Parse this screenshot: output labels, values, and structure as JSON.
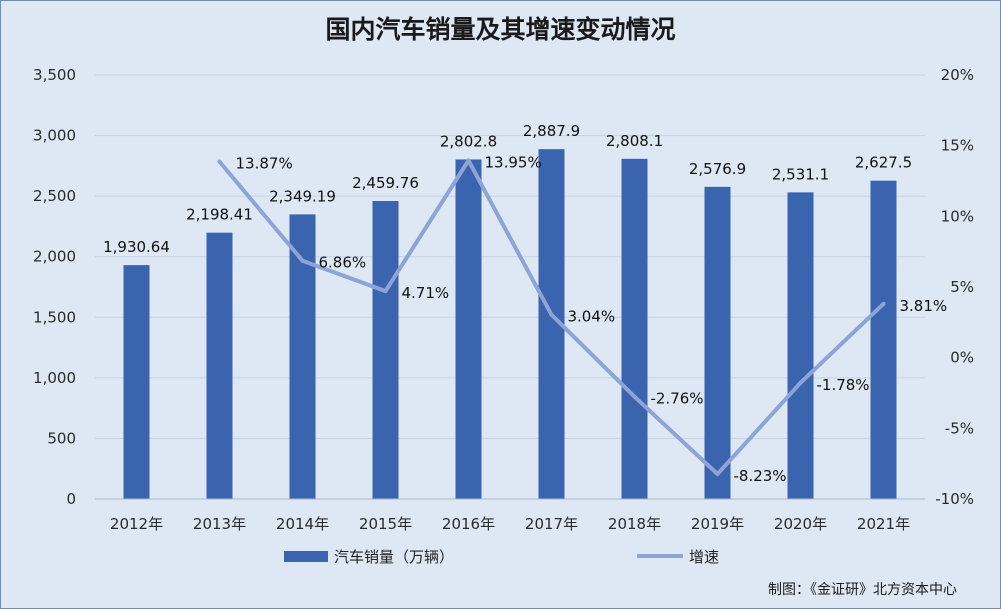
{
  "chart_data": {
    "type": "bar+line",
    "title": "国内汽车销量及其增速变动情况",
    "categories": [
      "2012年",
      "2013年",
      "2014年",
      "2015年",
      "2016年",
      "2017年",
      "2018年",
      "2019年",
      "2020年",
      "2021年"
    ],
    "series": [
      {
        "name": "汽车销量（万辆）",
        "type": "bar",
        "axis": "left",
        "values": [
          1930.64,
          2198.41,
          2349.19,
          2459.76,
          2802.8,
          2887.9,
          2808.1,
          2576.9,
          2531.1,
          2627.5
        ],
        "labels": [
          "1,930.64",
          "2,198.41",
          "2,349.19",
          "2,459.76",
          "2,802.8",
          "2,887.9",
          "2,808.1",
          "2,576.9",
          "2,531.1",
          "2,627.5"
        ]
      },
      {
        "name": "增速",
        "type": "line",
        "axis": "right",
        "values": [
          null,
          13.87,
          6.86,
          4.71,
          13.95,
          3.04,
          -2.76,
          -8.23,
          -1.78,
          3.81
        ],
        "labels": [
          "",
          "13.87%",
          "6.86%",
          "4.71%",
          "13.95%",
          "3.04%",
          "-2.76%",
          "-8.23%",
          "-1.78%",
          "3.81%"
        ]
      }
    ],
    "y_left": {
      "ylim": [
        0,
        3500
      ],
      "ticks": [
        "0",
        "500",
        "1,000",
        "1,500",
        "2,000",
        "2,500",
        "3,000",
        "3,500"
      ]
    },
    "y_right": {
      "ylim": [
        -10,
        20
      ],
      "ticks": [
        "-10%",
        "-5%",
        "0%",
        "5%",
        "10%",
        "15%",
        "20%"
      ]
    },
    "grid": true,
    "legend_position": "bottom",
    "colors": {
      "bar": "#3a64ad",
      "line": "#8ea3d6",
      "grid": "#c4d2e4",
      "background": "#dde8f4"
    }
  },
  "credit": "制图：《金证研》北方资本中心"
}
